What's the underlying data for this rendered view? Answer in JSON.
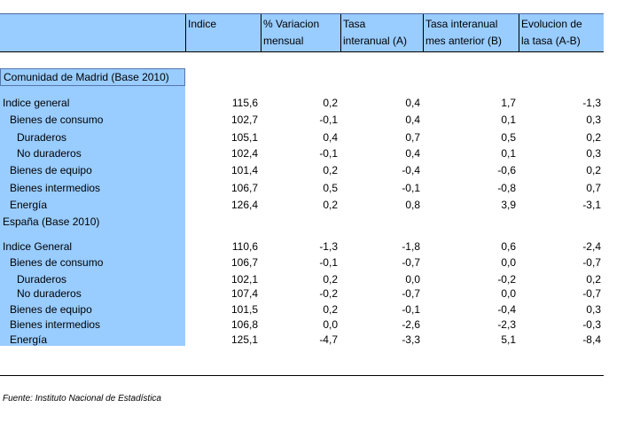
{
  "header": {
    "columns": [
      {
        "line1": "Indice",
        "line2": ""
      },
      {
        "line1": "% Variacion",
        "line2": "mensual"
      },
      {
        "line1": "Tasa",
        "line2": "interanual (A)"
      },
      {
        "line1": "Tasa interanual",
        "line2": "mes anterior (B)"
      },
      {
        "line1": "Evolucion de",
        "line2": "la tasa (A-B)"
      }
    ]
  },
  "sections": [
    {
      "title": "Comunidad de Madrid (Base 2010)",
      "rows": [
        {
          "label": "Indice general",
          "indent": 0,
          "values": [
            "115,6",
            "0,2",
            "0,4",
            "1,7",
            "-1,3"
          ]
        },
        {
          "label": "Bienes de consumo",
          "indent": 1,
          "values": [
            "102,7",
            "-0,1",
            "0,4",
            "0,1",
            "0,3"
          ]
        },
        {
          "label": "Duraderos",
          "indent": 2,
          "values": [
            "105,1",
            "0,4",
            "0,7",
            "0,5",
            "0,2"
          ]
        },
        {
          "label": "No duraderos",
          "indent": 2,
          "values": [
            "102,4",
            "-0,1",
            "0,4",
            "0,1",
            "0,3"
          ]
        },
        {
          "label": "Bienes de equipo",
          "indent": 1,
          "values": [
            "101,4",
            "0,2",
            "-0,4",
            "-0,6",
            "0,2"
          ]
        },
        {
          "label": "Bienes intermedios",
          "indent": 1,
          "values": [
            "106,7",
            "0,5",
            "-0,1",
            "-0,8",
            "0,7"
          ]
        },
        {
          "label": "Energía",
          "indent": 1,
          "values": [
            "126,4",
            "0,2",
            "0,8",
            "3,9",
            "-3,1"
          ]
        }
      ]
    },
    {
      "title": "España (Base 2010)",
      "rows": [
        {
          "label": "Indice General",
          "indent": 0,
          "values": [
            "110,6",
            "-1,3",
            "-1,8",
            "0,6",
            "-2,4"
          ]
        },
        {
          "label": "Bienes de consumo",
          "indent": 1,
          "values": [
            "106,7",
            "-0,1",
            "-0,7",
            "0,0",
            "-0,7"
          ]
        },
        {
          "label": "Duraderos",
          "indent": 2,
          "values": [
            "102,1",
            "0,2",
            "0,0",
            "-0,2",
            "0,2"
          ]
        },
        {
          "label": "No duraderos",
          "indent": 2,
          "values": [
            "107,4",
            "-0,2",
            "-0,7",
            "0,0",
            "-0,7"
          ]
        },
        {
          "label": "Bienes de equipo",
          "indent": 1,
          "values": [
            "101,5",
            "0,2",
            "-0,1",
            "-0,4",
            "0,3"
          ]
        },
        {
          "label": "Bienes intermedios",
          "indent": 1,
          "values": [
            "106,8",
            "0,0",
            "-2,6",
            "-2,3",
            "-0,3"
          ]
        },
        {
          "label": "Energía",
          "indent": 1,
          "values": [
            "125,1",
            "-4,7",
            "-3,3",
            "5,1",
            "-8,4"
          ]
        }
      ]
    }
  ],
  "footer": {
    "source": "Fuente: Instituto Nacional de Estadística"
  }
}
